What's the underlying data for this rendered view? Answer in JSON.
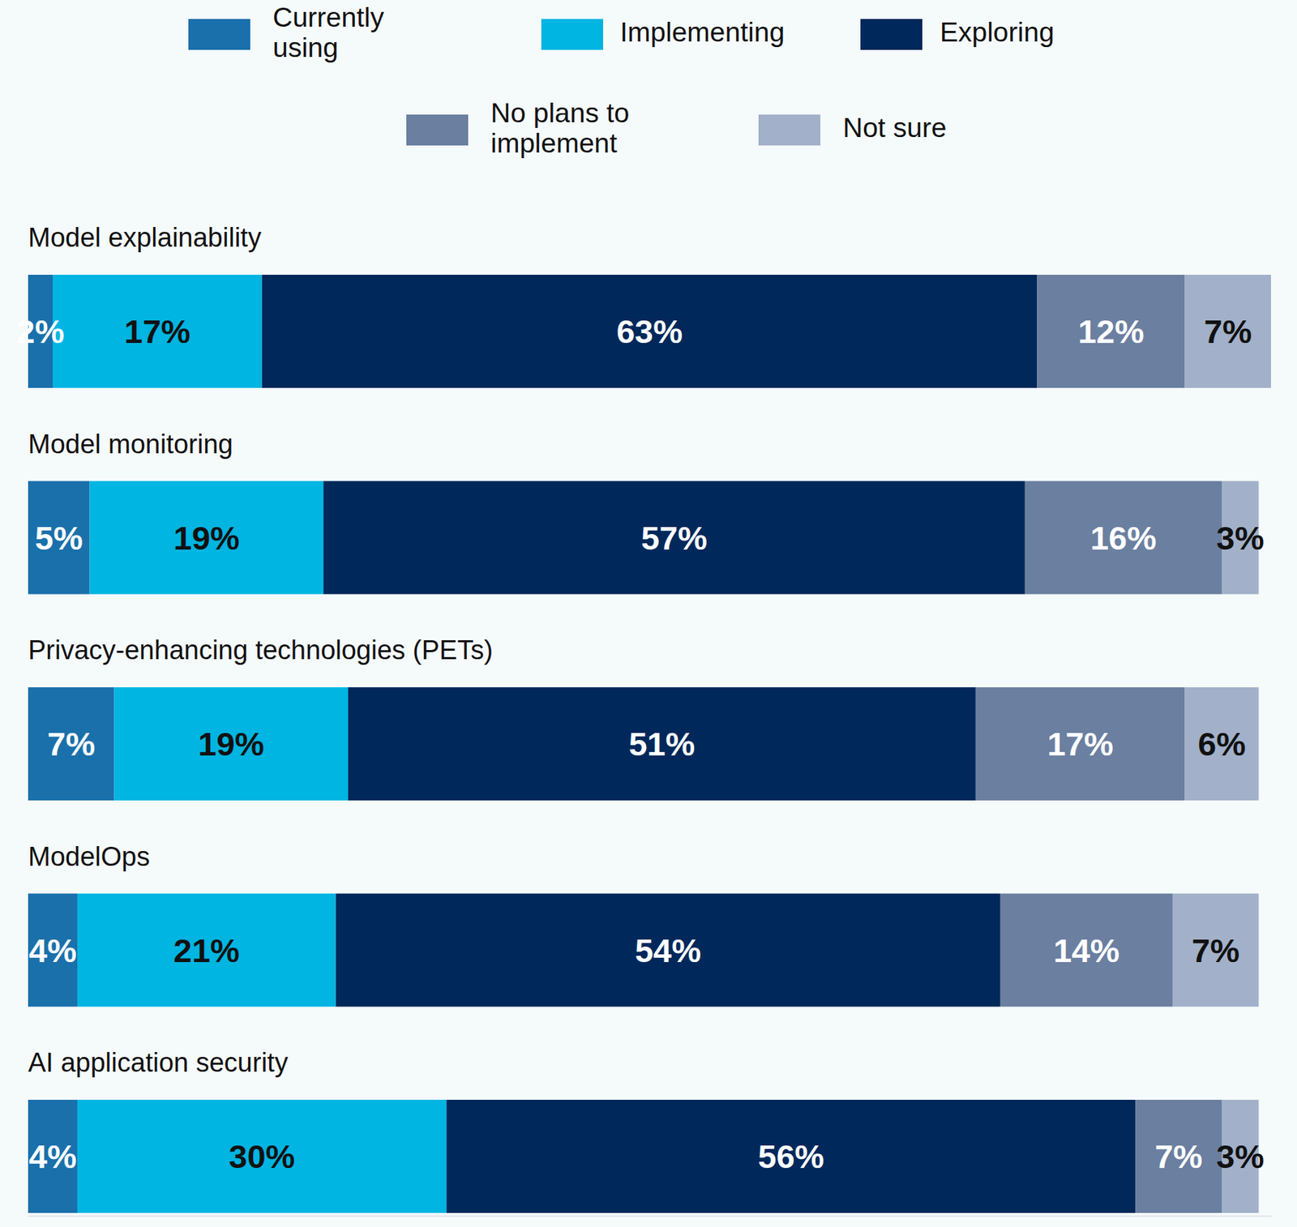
{
  "chart_data": {
    "type": "bar",
    "orientation": "horizontal",
    "stacked": true,
    "data_labels": true,
    "legend": "top",
    "tick_labels": false,
    "categories": [
      "Model explainability",
      "Model monitoring",
      "Privacy-enhancing technologies (PETs)",
      "ModelOps",
      "AI application security"
    ],
    "xlim": [
      0,
      101
    ],
    "series": [
      {
        "name": "Currently using",
        "color": "#1a70ab",
        "values": [
          2,
          5,
          7,
          4,
          4
        ],
        "value_labels": [
          "2%",
          "5%",
          "7%",
          "4%",
          "4%"
        ]
      },
      {
        "name": "Implementing",
        "color": "#00b5e2",
        "values": [
          17,
          19,
          19,
          21,
          30
        ],
        "value_labels": [
          "17%",
          "19%",
          "19%",
          "21%",
          "30%"
        ]
      },
      {
        "name": "Exploring",
        "color": "#00285a",
        "values": [
          63,
          57,
          51,
          54,
          56
        ],
        "value_labels": [
          "63%",
          "57%",
          "51%",
          "54%",
          "56%"
        ]
      },
      {
        "name": "No plans to implement",
        "color": "#6b7fa0",
        "values": [
          12,
          16,
          17,
          14,
          7
        ],
        "value_labels": [
          "12%",
          "16%",
          "17%",
          "14%",
          "7%"
        ]
      },
      {
        "name": "Not sure",
        "color": "#a2b1c9",
        "values": [
          7,
          3,
          6,
          7,
          3
        ],
        "value_labels": [
          "7%",
          "3%",
          "6%",
          "7%",
          "3%"
        ]
      }
    ]
  }
}
